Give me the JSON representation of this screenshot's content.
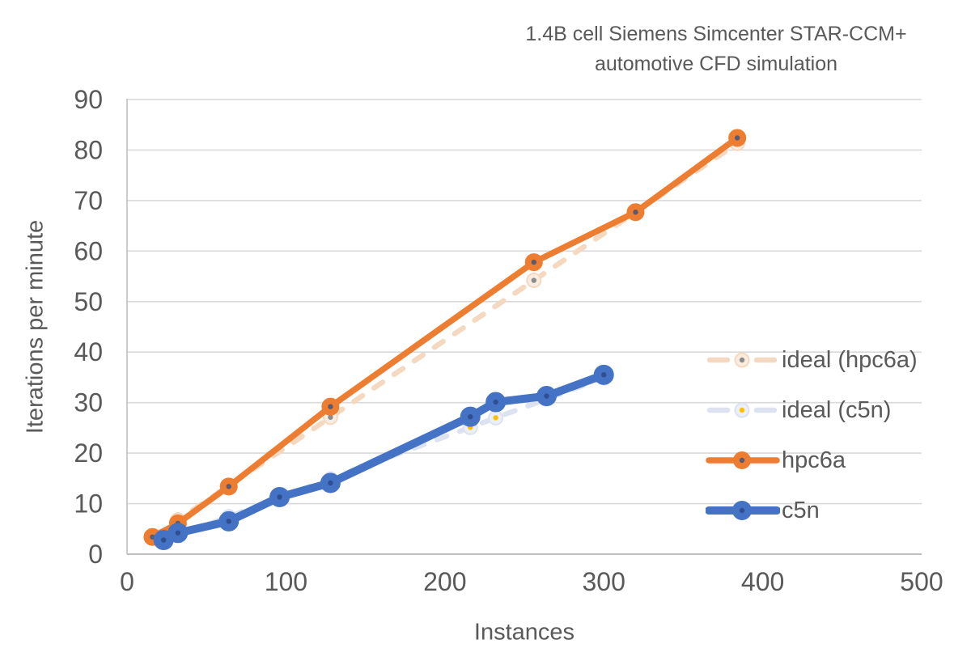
{
  "title": {
    "line1": "1.4B cell Siemens Simcenter STAR-CCM+",
    "line2": "automotive CFD simulation"
  },
  "text_color": "#595959",
  "gridline_color": "#D9D9D9",
  "axis_line_color": "#BFBFBF",
  "chart_data": {
    "type": "line",
    "title": "1.4B cell Siemens Simcenter STAR-CCM+ automotive CFD simulation",
    "xlabel": "Instances",
    "ylabel": "Iterations per minute",
    "xlim": [
      0,
      500
    ],
    "ylim": [
      0,
      90
    ],
    "x_ticks": [
      0,
      100,
      200,
      300,
      400,
      500
    ],
    "y_ticks": [
      0,
      10,
      20,
      30,
      40,
      50,
      60,
      70,
      80,
      90
    ],
    "grid": "horizontal",
    "legend_position": "right",
    "series": [
      {
        "id": "ideal-hpc6a",
        "name": "ideal (hpc6a)",
        "style": "dashed",
        "dash": "13 17",
        "color": "#F4D9C0",
        "marker_fill": "#FAECDE",
        "marker_dot": "#8C8C8C",
        "marker_r": 8.5,
        "width": 6.5,
        "x": [
          16,
          32,
          64,
          128,
          256,
          320,
          384
        ],
        "y": [
          3.4,
          6.8,
          13.5,
          27.1,
          54.2,
          67.7,
          81.3
        ]
      },
      {
        "id": "ideal-c5n",
        "name": "ideal (c5n)",
        "style": "dashed",
        "dash": "13 17",
        "color": "#DCE2EF",
        "marker_fill": "#EBEFF7",
        "marker_dot": "#FFC000",
        "marker_r": 8.5,
        "width": 6.5,
        "x": [
          23,
          32,
          64,
          96,
          128,
          216,
          232,
          264,
          300
        ],
        "y": [
          2.7,
          3.7,
          7.4,
          11.2,
          14.9,
          25.1,
          27.0,
          30.7,
          34.9
        ]
      },
      {
        "id": "hpc6a",
        "name": "hpc6a",
        "style": "solid",
        "dash": null,
        "color": "#ED7D31",
        "marker_fill": "#ED7D31",
        "marker_dot": "#5B5A6E",
        "marker_r": 10,
        "width": 7.5,
        "x": [
          16,
          32,
          64,
          128,
          256,
          320,
          384
        ],
        "y": [
          3.4,
          6.1,
          13.4,
          29.2,
          57.8,
          67.7,
          82.4
        ]
      },
      {
        "id": "c5n",
        "name": "c5n",
        "style": "solid",
        "dash": null,
        "color": "#4472C4",
        "marker_fill": "#4472C4",
        "marker_dot": "#2F4F93",
        "marker_r": 11.5,
        "width": 10,
        "x": [
          23,
          32,
          64,
          96,
          128,
          216,
          232,
          264,
          300
        ],
        "y": [
          2.8,
          4.2,
          6.5,
          11.3,
          14.1,
          27.2,
          30.1,
          31.3,
          35.5
        ]
      }
    ]
  }
}
